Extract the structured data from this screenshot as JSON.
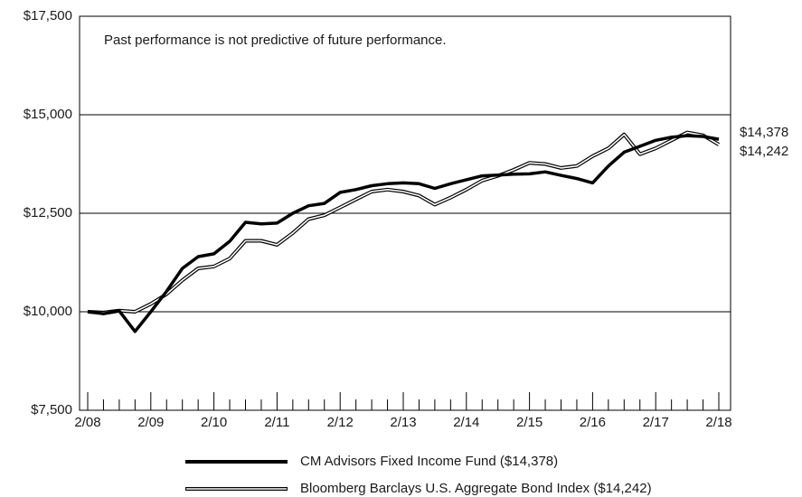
{
  "chart_data": {
    "type": "line",
    "annotation": "Past performance is not predictive of future performance.",
    "categories": [
      "2/08",
      null,
      null,
      null,
      "2/09",
      null,
      null,
      null,
      "2/10",
      null,
      null,
      null,
      "2/11",
      null,
      null,
      null,
      "2/12",
      null,
      null,
      null,
      "2/13",
      null,
      null,
      null,
      "2/14",
      null,
      null,
      null,
      "2/15",
      null,
      null,
      null,
      "2/16",
      null,
      null,
      null,
      "2/17",
      null,
      null,
      null,
      "2/18"
    ],
    "series": [
      {
        "name": "CM Advisors Fixed Income Fund ($14,378)",
        "color": "#000000",
        "style": "thick",
        "values": [
          10000,
          9950,
          10020,
          9500,
          10000,
          10520,
          11100,
          11400,
          11470,
          11790,
          12270,
          12230,
          12250,
          12500,
          12690,
          12750,
          13030,
          13100,
          13200,
          13250,
          13270,
          13250,
          13130,
          13250,
          13350,
          13450,
          13470,
          13490,
          13500,
          13550,
          13460,
          13380,
          13270,
          13700,
          14050,
          14200,
          14350,
          14430,
          14470,
          14450,
          14378
        ],
        "value_labels": [
          null,
          null,
          null,
          null,
          null,
          null,
          null,
          null,
          null,
          null,
          null,
          null,
          null,
          null,
          null,
          null,
          null,
          null,
          null,
          null,
          null,
          null,
          null,
          null,
          null,
          null,
          null,
          null,
          null,
          null,
          null,
          null,
          null,
          null,
          null,
          null,
          null,
          null,
          null,
          null,
          "$14,378"
        ]
      },
      {
        "name": "Bloomberg Barclays U.S. Aggregate Bond Index ($14,242)",
        "color": "#000000",
        "style": "double",
        "values": [
          10000,
          9980,
          10030,
          10000,
          10200,
          10450,
          10800,
          11100,
          11150,
          11350,
          11800,
          11800,
          11700,
          12000,
          12350,
          12450,
          12650,
          12850,
          13050,
          13100,
          13050,
          12950,
          12720,
          12900,
          13100,
          13330,
          13450,
          13600,
          13780,
          13750,
          13650,
          13700,
          13950,
          14150,
          14500,
          14000,
          14150,
          14350,
          14550,
          14480,
          14242
        ],
        "value_labels": [
          null,
          null,
          null,
          null,
          null,
          null,
          null,
          null,
          null,
          null,
          null,
          null,
          null,
          null,
          null,
          null,
          null,
          null,
          null,
          null,
          null,
          null,
          null,
          null,
          null,
          null,
          null,
          null,
          null,
          null,
          null,
          null,
          null,
          null,
          null,
          null,
          null,
          null,
          null,
          null,
          "$14,242"
        ]
      }
    ],
    "ylim": [
      7500,
      17500
    ],
    "yticks": [
      {
        "value": 7500,
        "label": "$7,500"
      },
      {
        "value": 10000,
        "label": "$10,000"
      },
      {
        "value": 12500,
        "label": "$12,500"
      },
      {
        "value": 15000,
        "label": "$15,000"
      },
      {
        "value": 17500,
        "label": "$17,500"
      }
    ],
    "grid": true,
    "legend": "bottom"
  }
}
